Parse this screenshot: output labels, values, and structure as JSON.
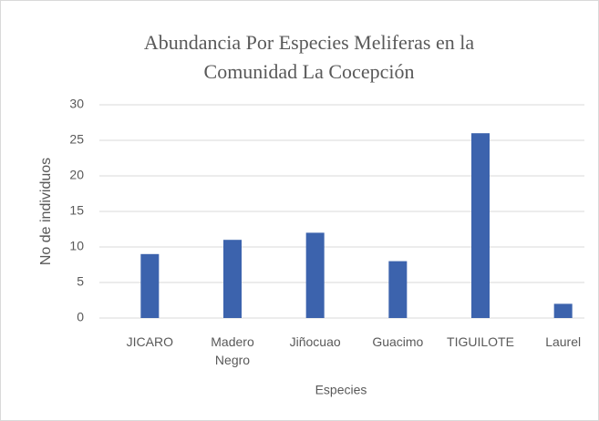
{
  "chart_data": {
    "type": "bar",
    "title": "Abundancia Por Especies Meliferas en la Comunidad La Cocepción",
    "x_label": "Especies",
    "y_label": "No de individuos",
    "categories": [
      "JICARO",
      "Madero Negro",
      "Jiñocuao",
      "Guacimo",
      "TIGUILOTE",
      "Laurel"
    ],
    "values": [
      9,
      11,
      12,
      8,
      26,
      2
    ],
    "color": "#3c63ad",
    "ylim": [
      0,
      30
    ],
    "yticks": [
      0,
      5,
      10,
      15,
      20,
      25,
      30
    ],
    "grid": true
  }
}
